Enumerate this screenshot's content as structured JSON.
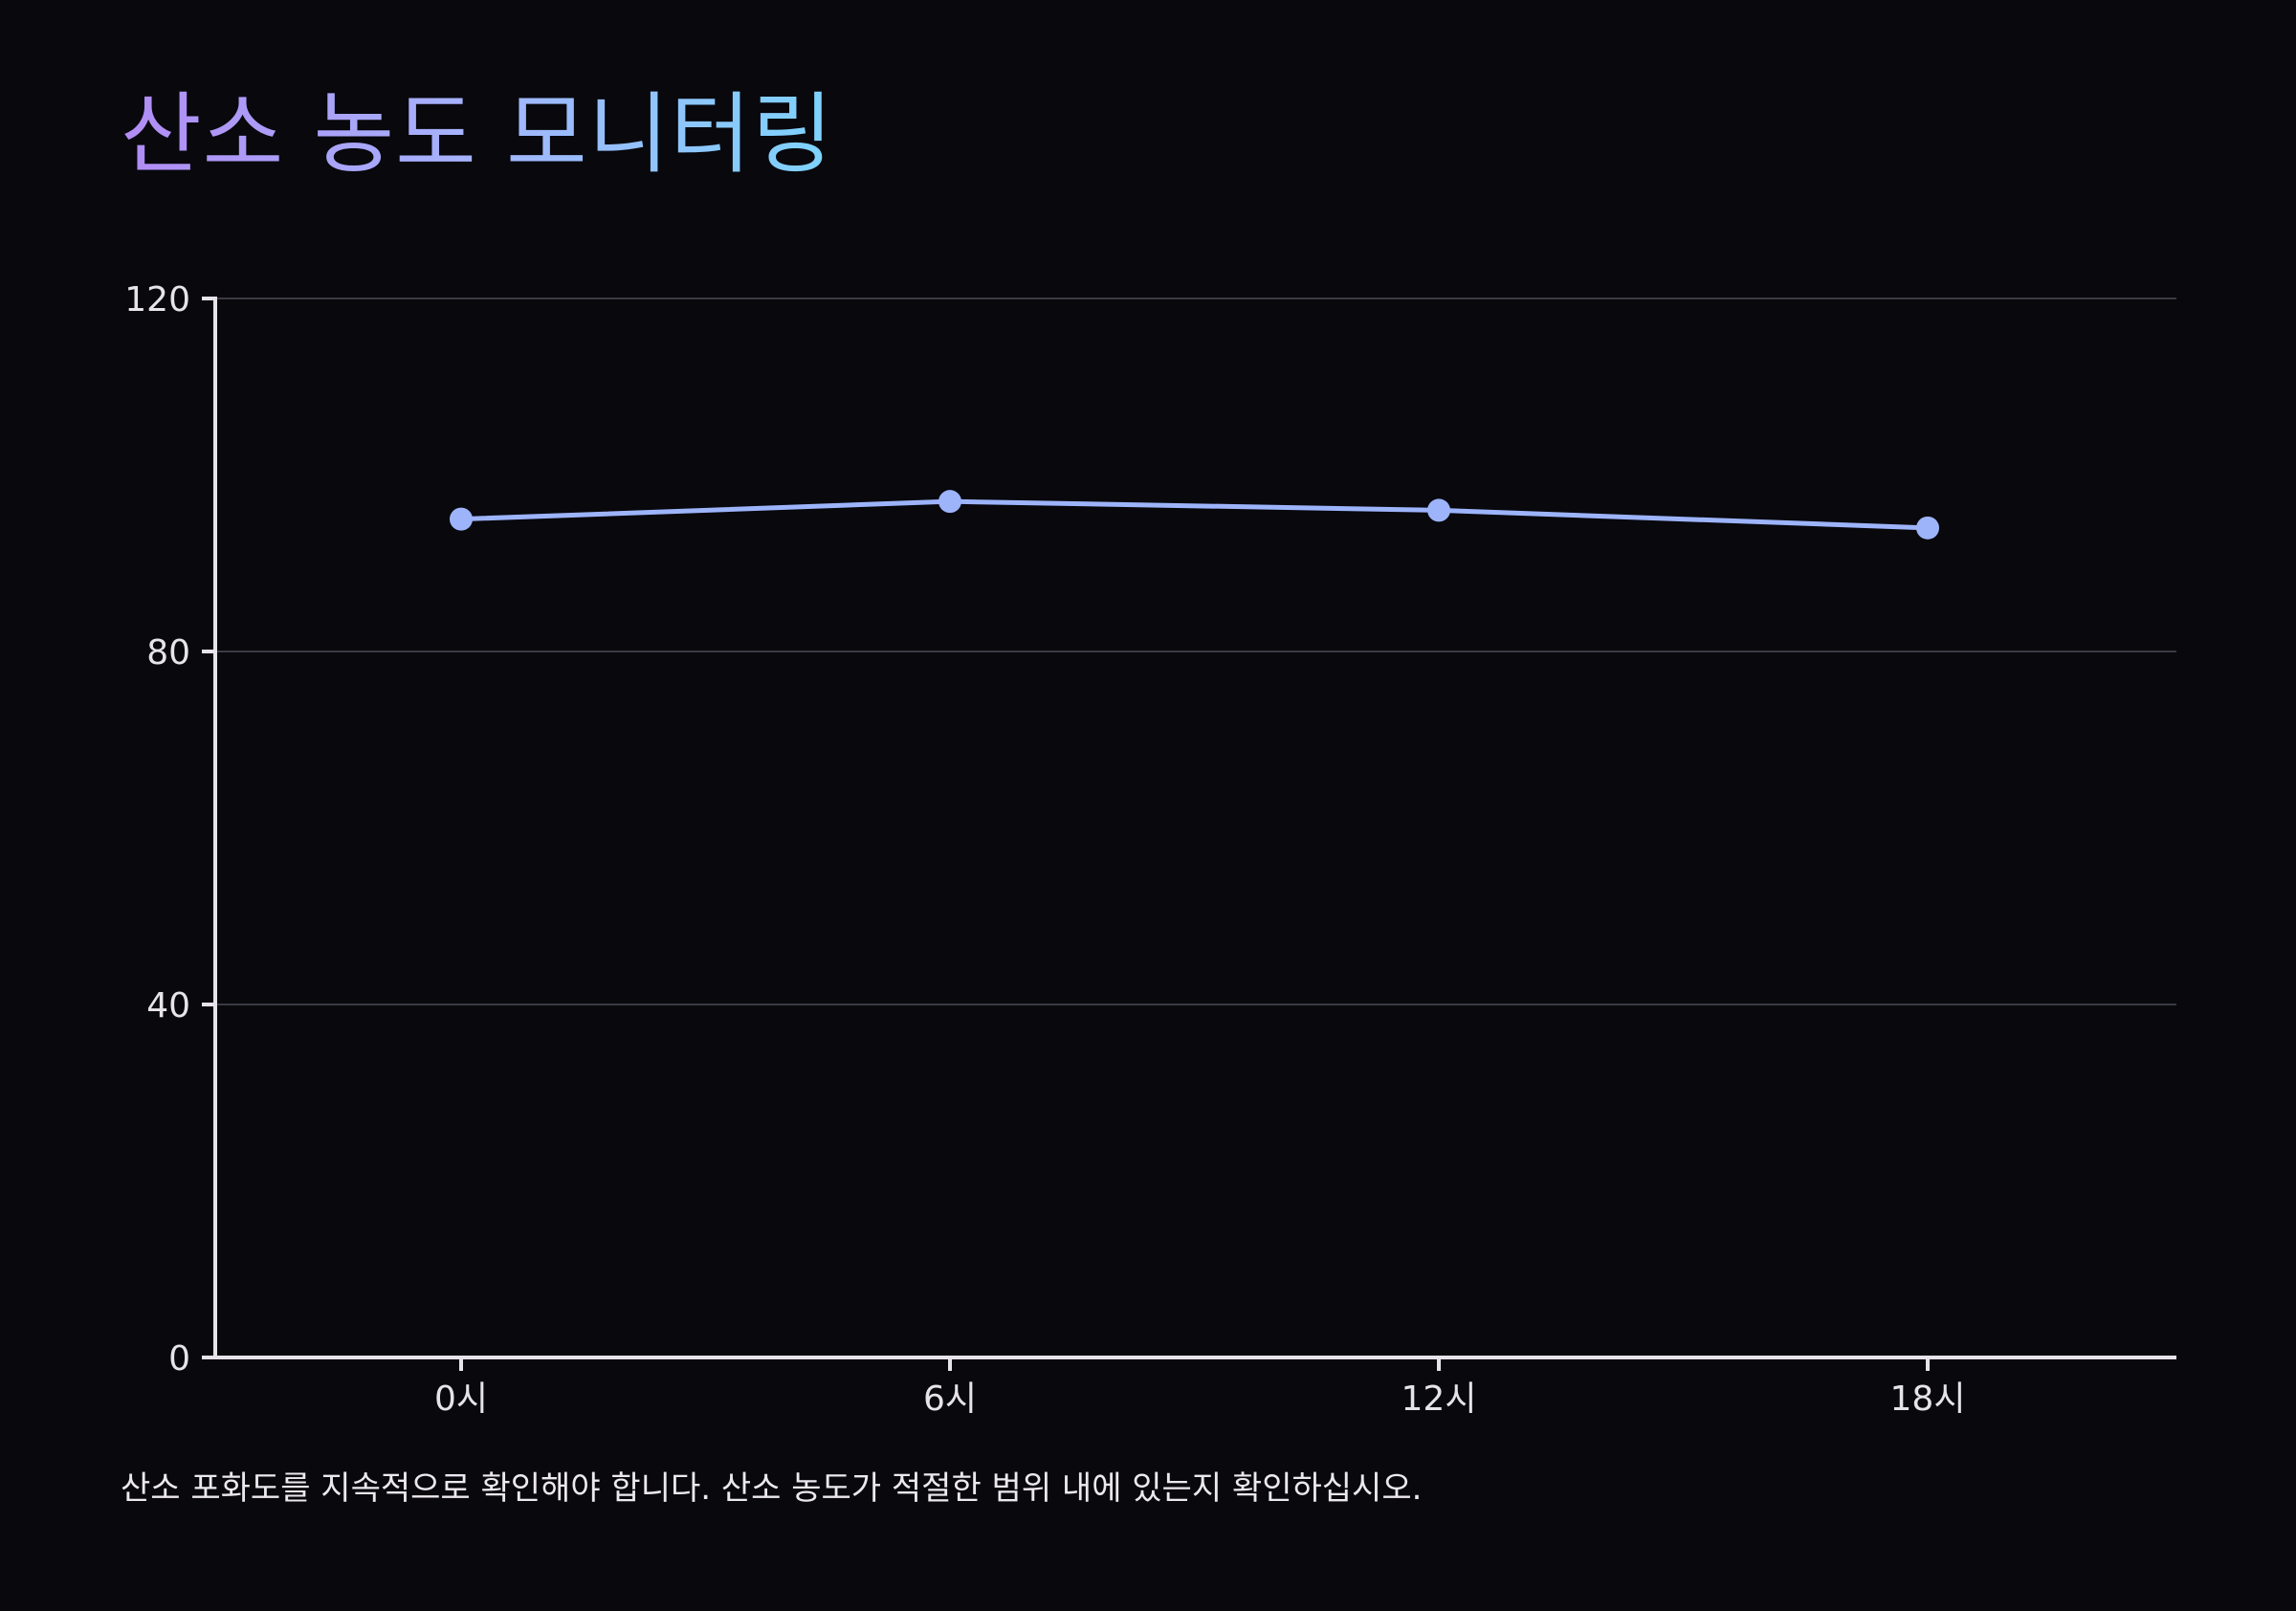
{
  "page": {
    "title": "산소 농도 모니터링",
    "footnote": "산소 포화도를 지속적으로 확인해야 합니다. 산소 농도가 적절한 범위 내에 있는지 확인하십시오."
  },
  "colors": {
    "background": "#08080d",
    "line": "#9db4fb",
    "axis": "#e7e3ea",
    "grid": "#3a3a42",
    "title_gradient": [
      "#b18cf4",
      "#a5b4fc",
      "#7dd3fc"
    ]
  },
  "chart_data": {
    "type": "line",
    "categories": [
      "0시",
      "6시",
      "12시",
      "18시"
    ],
    "series": [
      {
        "values": [
          95,
          97,
          96,
          94
        ]
      }
    ],
    "ylim": [
      0,
      120
    ],
    "yticks": [
      0,
      40,
      80,
      120
    ],
    "grid": true,
    "xlabel": "",
    "ylabel": ""
  }
}
